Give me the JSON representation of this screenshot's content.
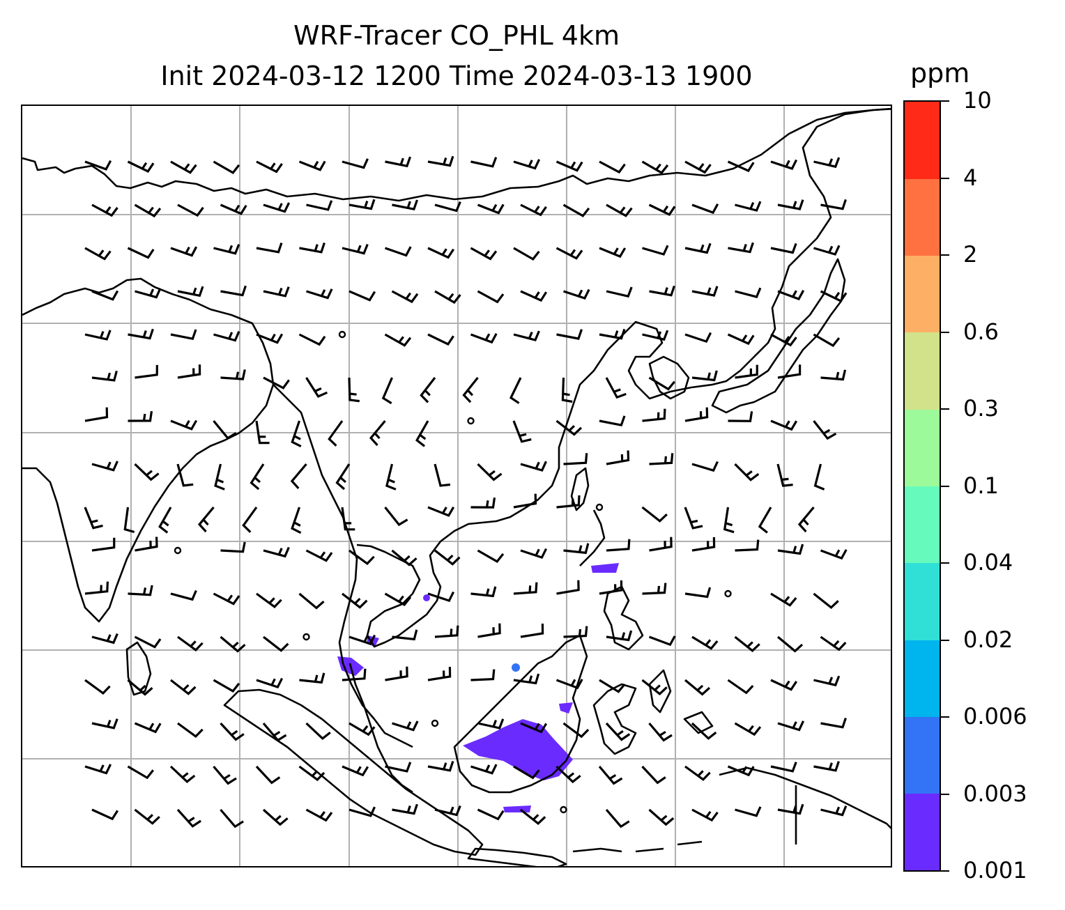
{
  "title": {
    "line1": "WRF-Tracer CO_PHL 4km",
    "line2": "Init 2024-03-12 1200 Time 2024-03-13 1900"
  },
  "colorbar": {
    "units": "ppm",
    "levels": [
      "0.001",
      "0.003",
      "0.006",
      "0.02",
      "0.04",
      "0.1",
      "0.3",
      "0.6",
      "2",
      "4",
      "10"
    ],
    "colors": [
      "#6a2bff",
      "#3373f5",
      "#00b4ee",
      "#30e0d6",
      "#66fbbc",
      "#9dfa9a",
      "#d1e28a",
      "#fdb065",
      "#ff7140",
      "#ff2a18"
    ]
  },
  "map": {
    "gridlines": true,
    "coastline_color": "#000000",
    "grid_color": "#b0b0b0",
    "wind_barbs": "black",
    "tracer_max_level": "0.006"
  }
}
